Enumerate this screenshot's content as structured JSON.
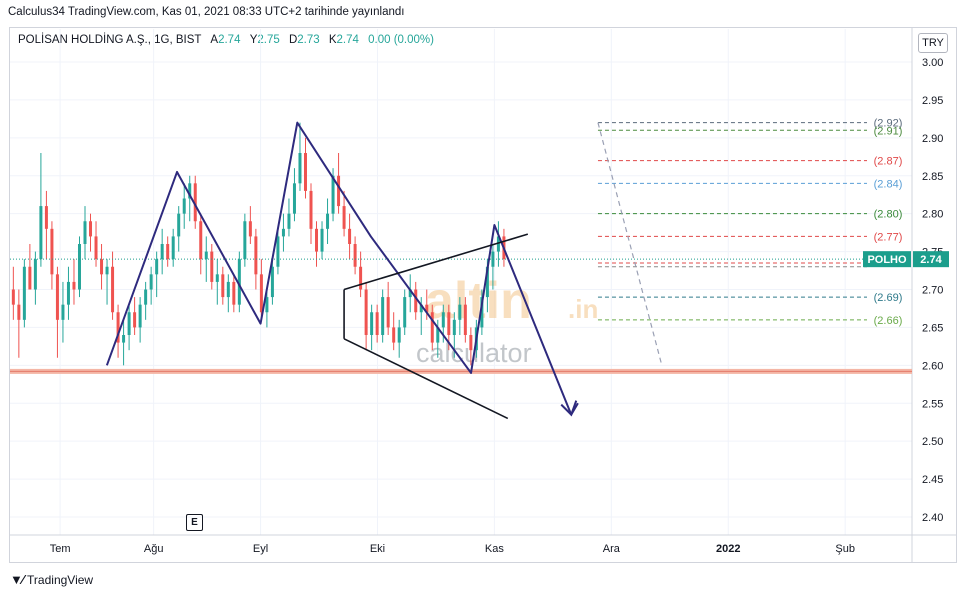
{
  "header": {
    "published": "Calculus34 TradingView.com, Kas 01, 2021 08:33 UTC+2 tarihinde yayınlandı"
  },
  "legend": {
    "symbol": "POLİSAN HOLDİNG A.Ş., 1G, BIST",
    "o_label": "A",
    "o_value": "2.74",
    "h_label": "Y",
    "h_value": "2.75",
    "l_label": "D",
    "l_value": "2.73",
    "c_label": "K",
    "c_value": "2.74",
    "change": "0.00 (0.00%)"
  },
  "currency": "TRY",
  "events_badge": "E",
  "footer": {
    "brand": "TradingView",
    "logo_icon": "tradingview-logo-icon"
  },
  "colors": {
    "up": "#26a69a",
    "down": "#ef5350",
    "pattern": "#2e2a7e",
    "trend": "#131722",
    "support": "#f4b6a6",
    "price_tag": "#1b9e8c"
  },
  "watermark": {
    "brand": "altin",
    "tld": ".in",
    "sub": "calculator"
  },
  "chart_data": {
    "type": "candlestick",
    "x_ticks": [
      "Tem",
      "Ağu",
      "Eyl",
      "Eki",
      "Kas",
      "Ara",
      "2022",
      "Şub"
    ],
    "y_ticks": [
      "2.40",
      "2.45",
      "2.50",
      "2.55",
      "2.60",
      "2.65",
      "2.70",
      "2.75",
      "2.80",
      "2.85",
      "2.90",
      "2.95",
      "3.00"
    ],
    "ylim": [
      2.37,
      3.03
    ],
    "last_price": {
      "label": "POLHO",
      "value": "2.74",
      "y": 2.74
    },
    "levels": [
      {
        "label": "(2.92)",
        "y": 2.92,
        "color": "#5b6b7c"
      },
      {
        "label": "(2.91)",
        "y": 2.91,
        "color": "#4c8b3f"
      },
      {
        "label": "(2.87)",
        "y": 2.87,
        "color": "#e04848"
      },
      {
        "label": "(2.84)",
        "y": 2.84,
        "color": "#5a9fd6"
      },
      {
        "label": "(2.80)",
        "y": 2.8,
        "color": "#3a8a3a"
      },
      {
        "label": "(2.77)",
        "y": 2.77,
        "color": "#e04848"
      },
      {
        "label": "",
        "y": 2.735,
        "color": "#e04848"
      },
      {
        "label": "",
        "y": 2.73,
        "color": "#888888"
      },
      {
        "label": "(2.69)",
        "y": 2.69,
        "color": "#2f7a8a"
      },
      {
        "label": "(2.66)",
        "y": 2.66,
        "color": "#6aaa4a"
      }
    ],
    "support_y": 2.592,
    "candles": [
      [
        2.7,
        2.73,
        2.66,
        2.68
      ],
      [
        2.68,
        2.7,
        2.61,
        2.66
      ],
      [
        2.66,
        2.74,
        2.65,
        2.73
      ],
      [
        2.73,
        2.76,
        2.7,
        2.7
      ],
      [
        2.7,
        2.75,
        2.68,
        2.74
      ],
      [
        2.74,
        2.88,
        2.73,
        2.81
      ],
      [
        2.81,
        2.83,
        2.74,
        2.78
      ],
      [
        2.78,
        2.79,
        2.7,
        2.72
      ],
      [
        2.72,
        2.73,
        2.61,
        2.66
      ],
      [
        2.66,
        2.71,
        2.63,
        2.68
      ],
      [
        2.68,
        2.73,
        2.66,
        2.71
      ],
      [
        2.71,
        2.74,
        2.68,
        2.7
      ],
      [
        2.7,
        2.77,
        2.69,
        2.76
      ],
      [
        2.76,
        2.81,
        2.74,
        2.79
      ],
      [
        2.79,
        2.8,
        2.75,
        2.77
      ],
      [
        2.77,
        2.79,
        2.73,
        2.74
      ],
      [
        2.74,
        2.76,
        2.7,
        2.72
      ],
      [
        2.72,
        2.74,
        2.68,
        2.73
      ],
      [
        2.73,
        2.75,
        2.66,
        2.67
      ],
      [
        2.67,
        2.68,
        2.61,
        2.63
      ],
      [
        2.63,
        2.66,
        2.6,
        2.64
      ],
      [
        2.64,
        2.68,
        2.62,
        2.67
      ],
      [
        2.67,
        2.69,
        2.64,
        2.65
      ],
      [
        2.65,
        2.69,
        2.63,
        2.68
      ],
      [
        2.68,
        2.71,
        2.66,
        2.7
      ],
      [
        2.7,
        2.73,
        2.68,
        2.72
      ],
      [
        2.72,
        2.75,
        2.69,
        2.74
      ],
      [
        2.74,
        2.78,
        2.72,
        2.76
      ],
      [
        2.76,
        2.77,
        2.73,
        2.74
      ],
      [
        2.74,
        2.78,
        2.73,
        2.77
      ],
      [
        2.77,
        2.81,
        2.75,
        2.8
      ],
      [
        2.8,
        2.84,
        2.78,
        2.82
      ],
      [
        2.82,
        2.85,
        2.79,
        2.84
      ],
      [
        2.84,
        2.85,
        2.78,
        2.79
      ],
      [
        2.79,
        2.8,
        2.72,
        2.74
      ],
      [
        2.74,
        2.77,
        2.71,
        2.75
      ],
      [
        2.75,
        2.76,
        2.7,
        2.71
      ],
      [
        2.71,
        2.74,
        2.68,
        2.72
      ],
      [
        2.72,
        2.73,
        2.68,
        2.69
      ],
      [
        2.69,
        2.72,
        2.67,
        2.71
      ],
      [
        2.71,
        2.72,
        2.67,
        2.68
      ],
      [
        2.68,
        2.75,
        2.67,
        2.74
      ],
      [
        2.74,
        2.8,
        2.73,
        2.79
      ],
      [
        2.79,
        2.81,
        2.76,
        2.77
      ],
      [
        2.77,
        2.78,
        2.7,
        2.72
      ],
      [
        2.72,
        2.74,
        2.66,
        2.67
      ],
      [
        2.67,
        2.7,
        2.65,
        2.69
      ],
      [
        2.69,
        2.74,
        2.68,
        2.73
      ],
      [
        2.73,
        2.78,
        2.72,
        2.77
      ],
      [
        2.77,
        2.8,
        2.75,
        2.78
      ],
      [
        2.78,
        2.82,
        2.77,
        2.8
      ],
      [
        2.8,
        2.86,
        2.79,
        2.84
      ],
      [
        2.84,
        2.92,
        2.83,
        2.88
      ],
      [
        2.88,
        2.9,
        2.82,
        2.83
      ],
      [
        2.83,
        2.84,
        2.76,
        2.78
      ],
      [
        2.78,
        2.79,
        2.73,
        2.75
      ],
      [
        2.75,
        2.79,
        2.74,
        2.78
      ],
      [
        2.78,
        2.82,
        2.76,
        2.8
      ],
      [
        2.8,
        2.86,
        2.79,
        2.85
      ],
      [
        2.85,
        2.88,
        2.8,
        2.81
      ],
      [
        2.81,
        2.83,
        2.77,
        2.78
      ],
      [
        2.78,
        2.8,
        2.74,
        2.76
      ],
      [
        2.76,
        2.77,
        2.72,
        2.73
      ],
      [
        2.73,
        2.75,
        2.69,
        2.7
      ],
      [
        2.7,
        2.71,
        2.62,
        2.64
      ],
      [
        2.64,
        2.68,
        2.62,
        2.67
      ],
      [
        2.67,
        2.68,
        2.63,
        2.64
      ],
      [
        2.64,
        2.7,
        2.63,
        2.69
      ],
      [
        2.69,
        2.71,
        2.64,
        2.65
      ],
      [
        2.65,
        2.67,
        2.62,
        2.63
      ],
      [
        2.63,
        2.66,
        2.61,
        2.65
      ],
      [
        2.65,
        2.7,
        2.64,
        2.69
      ],
      [
        2.69,
        2.72,
        2.67,
        2.7
      ],
      [
        2.7,
        2.71,
        2.66,
        2.67
      ],
      [
        2.67,
        2.69,
        2.64,
        2.68
      ],
      [
        2.68,
        2.7,
        2.66,
        2.67
      ],
      [
        2.67,
        2.68,
        2.62,
        2.63
      ],
      [
        2.63,
        2.66,
        2.61,
        2.65
      ],
      [
        2.65,
        2.68,
        2.63,
        2.67
      ],
      [
        2.67,
        2.68,
        2.62,
        2.64
      ],
      [
        2.64,
        2.67,
        2.61,
        2.66
      ],
      [
        2.66,
        2.69,
        2.64,
        2.68
      ],
      [
        2.68,
        2.69,
        2.63,
        2.64
      ],
      [
        2.64,
        2.65,
        2.6,
        2.62
      ],
      [
        2.62,
        2.66,
        2.61,
        2.65
      ],
      [
        2.65,
        2.7,
        2.64,
        2.69
      ],
      [
        2.69,
        2.74,
        2.67,
        2.73
      ],
      [
        2.73,
        2.76,
        2.7,
        2.75
      ],
      [
        2.75,
        2.79,
        2.73,
        2.77
      ],
      [
        2.77,
        2.78,
        2.73,
        2.74
      ]
    ],
    "x_range": [
      0,
      270
    ],
    "candle_x": {
      "start": 1,
      "step": 1.65
    },
    "tick_x": [
      15,
      43,
      75,
      110,
      145,
      180,
      215,
      250
    ],
    "patterns": [
      {
        "name": "zigzag",
        "points": [
          [
            29,
            2.6
          ],
          [
            50,
            2.855
          ],
          [
            75,
            2.655
          ],
          [
            86,
            2.92
          ],
          [
            108,
            2.77
          ],
          [
            138,
            2.59
          ],
          [
            145,
            2.785
          ],
          [
            168,
            2.535
          ],
          [
            170,
            2.55
          ]
        ]
      },
      {
        "name": "upper-trend",
        "points": [
          [
            100,
            2.7
          ],
          [
            155,
            2.773
          ]
        ]
      },
      {
        "name": "lower-trend",
        "points": [
          [
            100,
            2.635
          ],
          [
            149,
            2.53
          ]
        ]
      },
      {
        "name": "left-wedge",
        "points": [
          [
            100,
            2.635
          ],
          [
            100,
            2.7
          ]
        ]
      },
      {
        "name": "projection-dashed",
        "points": [
          [
            176,
            2.92
          ],
          [
            195,
            2.602
          ]
        ]
      }
    ]
  }
}
